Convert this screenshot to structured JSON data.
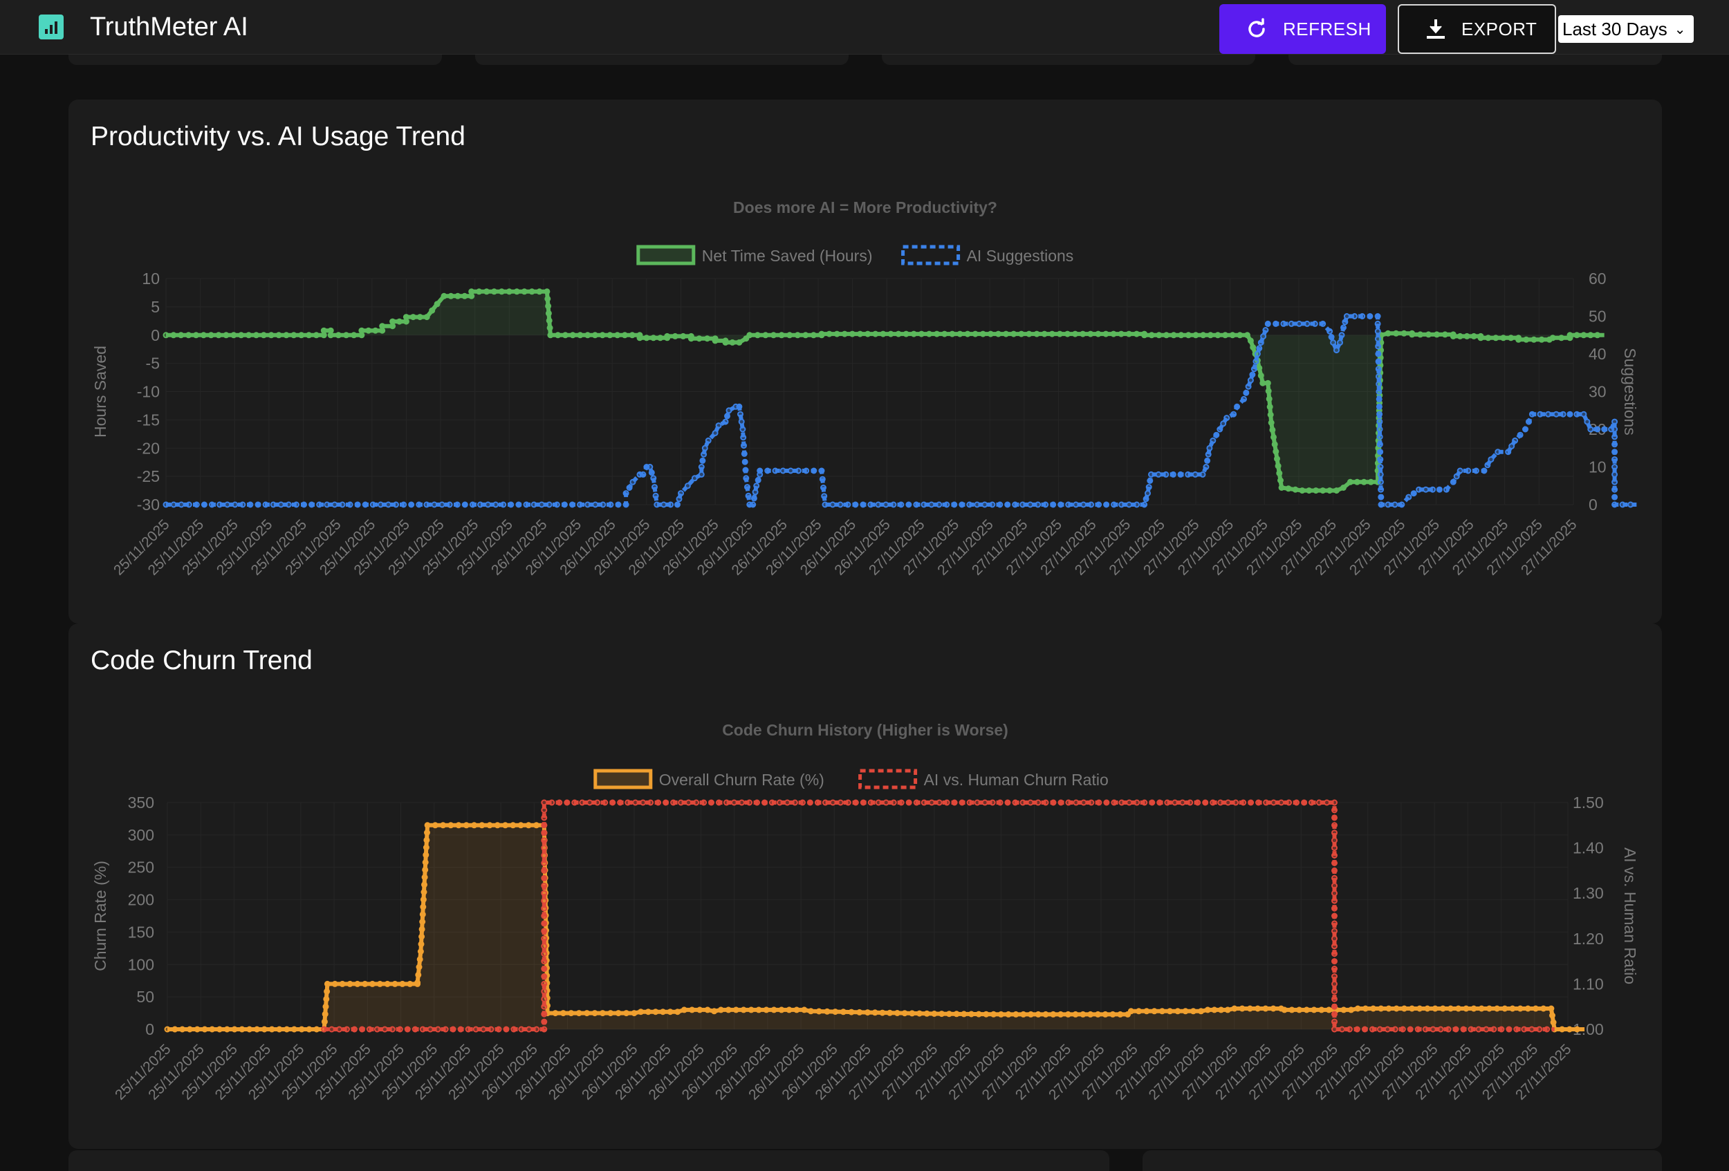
{
  "app": {
    "title": "TruthMeter AI",
    "refresh_label": "REFRESH",
    "export_label": "EXPORT",
    "date_range": "Last 30 Days"
  },
  "colors": {
    "accent": "#5b1cf0",
    "green": "#5cb85c",
    "blue": "#3b82e8",
    "orange": "#f0a030",
    "red": "#e0483a",
    "logo": "#4dd6c0"
  },
  "icons": {
    "logo": "bar-chart-icon",
    "refresh": "refresh-icon",
    "export": "download-icon",
    "dropdown": "chevron-down-icon"
  },
  "productivity": {
    "card_title": "Productivity vs. AI Usage Trend"
  },
  "churn": {
    "card_title": "Code Churn Trend"
  },
  "chart_data": [
    {
      "type": "line",
      "title": "Does more AI = More Productivity?",
      "legend_position": "top",
      "grid": true,
      "ylabel": "Hours Saved",
      "y2label": "Suggestions",
      "ylim": [
        -30,
        10
      ],
      "y2lim": [
        0,
        60
      ],
      "yticks": [
        10,
        5,
        0,
        -5,
        -10,
        -15,
        -20,
        -25,
        -30
      ],
      "y2ticks": [
        60,
        50,
        40,
        30,
        20,
        10,
        0
      ],
      "xtick_labels": [
        "25/11/2025",
        "25/11/2025",
        "25/11/2025",
        "25/11/2025",
        "25/11/2025",
        "25/11/2025",
        "25/11/2025",
        "25/11/2025",
        "25/11/2025",
        "25/11/2025",
        "25/11/2025",
        "26/11/2025",
        "26/11/2025",
        "26/11/2025",
        "26/11/2025",
        "26/11/2025",
        "26/11/2025",
        "26/11/2025",
        "26/11/2025",
        "26/11/2025",
        "26/11/2025",
        "26/11/2025",
        "27/11/2025",
        "27/11/2025",
        "27/11/2025",
        "27/11/2025",
        "27/11/2025",
        "27/11/2025",
        "27/11/2025",
        "27/11/2025",
        "27/11/2025",
        "27/11/2025",
        "27/11/2025",
        "27/11/2025",
        "27/11/2025",
        "27/11/2025",
        "27/11/2025",
        "27/11/2025",
        "27/11/2025",
        "27/11/2025",
        "27/11/2025",
        "27/11/2025"
      ],
      "series": [
        {
          "name": "Net Time Saved (Hours)",
          "axis": "left",
          "color": "#5cb85c",
          "fill": true,
          "points": [
            [
              0,
              0
            ],
            [
              4.6,
              0
            ],
            [
              4.6,
              0.8
            ],
            [
              4.8,
              0.8
            ],
            [
              4.8,
              0
            ],
            [
              5.7,
              0
            ],
            [
              5.7,
              0.8
            ],
            [
              6.3,
              0.8
            ],
            [
              6.3,
              1.6
            ],
            [
              6.6,
              1.6
            ],
            [
              6.6,
              2.4
            ],
            [
              7,
              2.4
            ],
            [
              7,
              3.2
            ],
            [
              7.6,
              3.2
            ],
            [
              7.9,
              5.5
            ],
            [
              8.1,
              6.9
            ],
            [
              8.9,
              6.9
            ],
            [
              8.9,
              7.7
            ],
            [
              11.1,
              7.7
            ],
            [
              11.2,
              0
            ],
            [
              13.8,
              0
            ],
            [
              13.8,
              -0.5
            ],
            [
              14.6,
              -0.5
            ],
            [
              14.6,
              -0.2
            ],
            [
              15.3,
              -0.2
            ],
            [
              15.3,
              -0.6
            ],
            [
              16.0,
              -0.6
            ],
            [
              16.0,
              -1.0
            ],
            [
              16.3,
              -1.0
            ],
            [
              16.3,
              -1.3
            ],
            [
              16.7,
              -1.3
            ],
            [
              16.9,
              -0.6
            ],
            [
              17.0,
              0
            ],
            [
              19.1,
              0
            ],
            [
              19.1,
              0.2
            ],
            [
              28.5,
              0.2
            ],
            [
              28.5,
              0
            ],
            [
              31.5,
              0
            ],
            [
              31.6,
              -1.0
            ],
            [
              31.8,
              -4.5
            ],
            [
              31.95,
              -8.5
            ],
            [
              32.1,
              -8.5
            ],
            [
              32.2,
              -15.5
            ],
            [
              32.5,
              -27
            ],
            [
              33.1,
              -27.5
            ],
            [
              34.1,
              -27.5
            ],
            [
              34.3,
              -27
            ],
            [
              34.5,
              -26
            ],
            [
              35.3,
              -26
            ],
            [
              35.3,
              -24
            ],
            [
              35.4,
              0
            ],
            [
              35.6,
              0.3
            ],
            [
              36.3,
              0.3
            ],
            [
              36.3,
              0.1
            ],
            [
              37.5,
              0.1
            ],
            [
              37.5,
              -0.2
            ],
            [
              38.3,
              -0.2
            ],
            [
              38.3,
              -0.5
            ],
            [
              39.4,
              -0.5
            ],
            [
              39.4,
              -0.8
            ],
            [
              40.3,
              -0.8
            ],
            [
              40.4,
              -0.5
            ],
            [
              40.9,
              -0.5
            ],
            [
              40.9,
              0
            ],
            [
              41.9,
              0
            ]
          ]
        },
        {
          "name": "AI Suggestions",
          "axis": "right",
          "color": "#3b82e8",
          "dashed": true,
          "points": [
            [
              0,
              0
            ],
            [
              13.4,
              0
            ],
            [
              13.4,
              3
            ],
            [
              13.6,
              6
            ],
            [
              13.8,
              8
            ],
            [
              13.9,
              8
            ],
            [
              14.0,
              10
            ],
            [
              14.1,
              10
            ],
            [
              14.2,
              7
            ],
            [
              14.3,
              0
            ],
            [
              14.9,
              0
            ],
            [
              15.0,
              3
            ],
            [
              15.2,
              5
            ],
            [
              15.4,
              7
            ],
            [
              15.6,
              8
            ],
            [
              15.6,
              10
            ],
            [
              15.7,
              15
            ],
            [
              15.8,
              17
            ],
            [
              16.0,
              19
            ],
            [
              16.1,
              21
            ],
            [
              16.3,
              22
            ],
            [
              16.4,
              25
            ],
            [
              16.6,
              26
            ],
            [
              16.7,
              26
            ],
            [
              16.8,
              20
            ],
            [
              16.9,
              7
            ],
            [
              17.0,
              0
            ],
            [
              17.1,
              0
            ],
            [
              17.2,
              5
            ],
            [
              17.3,
              8
            ],
            [
              17.3,
              9
            ],
            [
              19.1,
              9
            ],
            [
              19.2,
              0
            ],
            [
              28.5,
              0
            ],
            [
              28.6,
              3
            ],
            [
              28.7,
              8
            ],
            [
              30.2,
              8
            ],
            [
              30.3,
              10
            ],
            [
              30.4,
              15
            ],
            [
              30.5,
              17
            ],
            [
              30.7,
              20
            ],
            [
              30.9,
              23
            ],
            [
              31.1,
              24
            ],
            [
              31.2,
              26
            ],
            [
              31.4,
              28
            ],
            [
              31.6,
              33
            ],
            [
              31.7,
              36
            ],
            [
              31.8,
              40
            ],
            [
              31.9,
              43
            ],
            [
              32.1,
              48
            ],
            [
              33.7,
              48
            ],
            [
              33.9,
              46
            ],
            [
              34.0,
              43
            ],
            [
              34.1,
              41
            ],
            [
              34.2,
              43
            ],
            [
              34.3,
              47
            ],
            [
              34.4,
              50
            ],
            [
              35.3,
              50
            ],
            [
              35.3,
              48
            ],
            [
              35.4,
              0
            ],
            [
              36.0,
              0
            ],
            [
              36.2,
              2
            ],
            [
              36.5,
              4
            ],
            [
              37.3,
              4
            ],
            [
              37.5,
              6
            ],
            [
              37.7,
              9
            ],
            [
              38.4,
              9
            ],
            [
              38.6,
              12
            ],
            [
              38.8,
              14
            ],
            [
              39.1,
              14
            ],
            [
              39.3,
              17
            ],
            [
              39.6,
              20
            ],
            [
              39.8,
              24
            ],
            [
              40.5,
              24
            ],
            [
              41.3,
              24
            ],
            [
              41.5,
              20
            ],
            [
              42.1,
              20
            ],
            [
              42.2,
              22
            ],
            [
              42.2,
              0
            ],
            [
              42.9,
              0
            ]
          ]
        }
      ]
    },
    {
      "type": "line",
      "title": "Code Churn History (Higher is Worse)",
      "legend_position": "top",
      "grid": true,
      "ylabel": "Churn Rate (%)",
      "y2label": "AI vs. Human Ratio",
      "ylim": [
        0,
        350
      ],
      "y2lim": [
        1.0,
        1.5
      ],
      "yticks": [
        350,
        300,
        250,
        200,
        150,
        100,
        50,
        0
      ],
      "y2ticks": [
        1.5,
        1.4,
        1.3,
        1.2,
        1.1,
        1.0
      ],
      "xtick_labels": [
        "25/11/2025",
        "25/11/2025",
        "25/11/2025",
        "25/11/2025",
        "25/11/2025",
        "25/11/2025",
        "25/11/2025",
        "25/11/2025",
        "25/11/2025",
        "25/11/2025",
        "25/11/2025",
        "26/11/2025",
        "26/11/2025",
        "26/11/2025",
        "26/11/2025",
        "26/11/2025",
        "26/11/2025",
        "26/11/2025",
        "26/11/2025",
        "26/11/2025",
        "26/11/2025",
        "26/11/2025",
        "27/11/2025",
        "27/11/2025",
        "27/11/2025",
        "27/11/2025",
        "27/11/2025",
        "27/11/2025",
        "27/11/2025",
        "27/11/2025",
        "27/11/2025",
        "27/11/2025",
        "27/11/2025",
        "27/11/2025",
        "27/11/2025",
        "27/11/2025",
        "27/11/2025",
        "27/11/2025",
        "27/11/2025",
        "27/11/2025",
        "27/11/2025",
        "27/11/2025",
        "27/11/2025"
      ],
      "series": [
        {
          "name": "Overall Churn Rate (%)",
          "axis": "left",
          "color": "#f0a030",
          "fill": true,
          "points": [
            [
              0,
              0
            ],
            [
              4.7,
              0
            ],
            [
              4.8,
              70
            ],
            [
              7.5,
              70
            ],
            [
              7.5,
              72
            ],
            [
              7.6,
              120
            ],
            [
              7.8,
              315
            ],
            [
              11.3,
              315
            ],
            [
              11.4,
              25
            ],
            [
              14.0,
              25
            ],
            [
              14.2,
              27
            ],
            [
              15.3,
              27
            ],
            [
              15.5,
              30
            ],
            [
              16.2,
              30
            ],
            [
              16.4,
              28
            ],
            [
              16.6,
              30
            ],
            [
              19.1,
              30
            ],
            [
              19.3,
              28
            ],
            [
              21.0,
              26
            ],
            [
              23.0,
              24
            ],
            [
              25.0,
              23
            ],
            [
              28.8,
              23
            ],
            [
              28.9,
              28
            ],
            [
              31.0,
              28
            ],
            [
              31.2,
              30
            ],
            [
              31.8,
              30
            ],
            [
              32.0,
              32
            ],
            [
              33.4,
              32
            ],
            [
              33.5,
              30
            ],
            [
              35.5,
              30
            ],
            [
              35.7,
              32
            ],
            [
              41.5,
              32
            ],
            [
              41.6,
              0
            ],
            [
              42.5,
              0
            ]
          ]
        },
        {
          "name": "AI vs. Human Churn Ratio",
          "axis": "right",
          "color": "#e0483a",
          "dashed": true,
          "points": [
            [
              4.7,
              1.0
            ],
            [
              11.3,
              1.0
            ],
            [
              11.3,
              1.5
            ],
            [
              35.0,
              1.5
            ],
            [
              35.0,
              1.0
            ],
            [
              41.6,
              1.0
            ]
          ]
        }
      ]
    }
  ]
}
